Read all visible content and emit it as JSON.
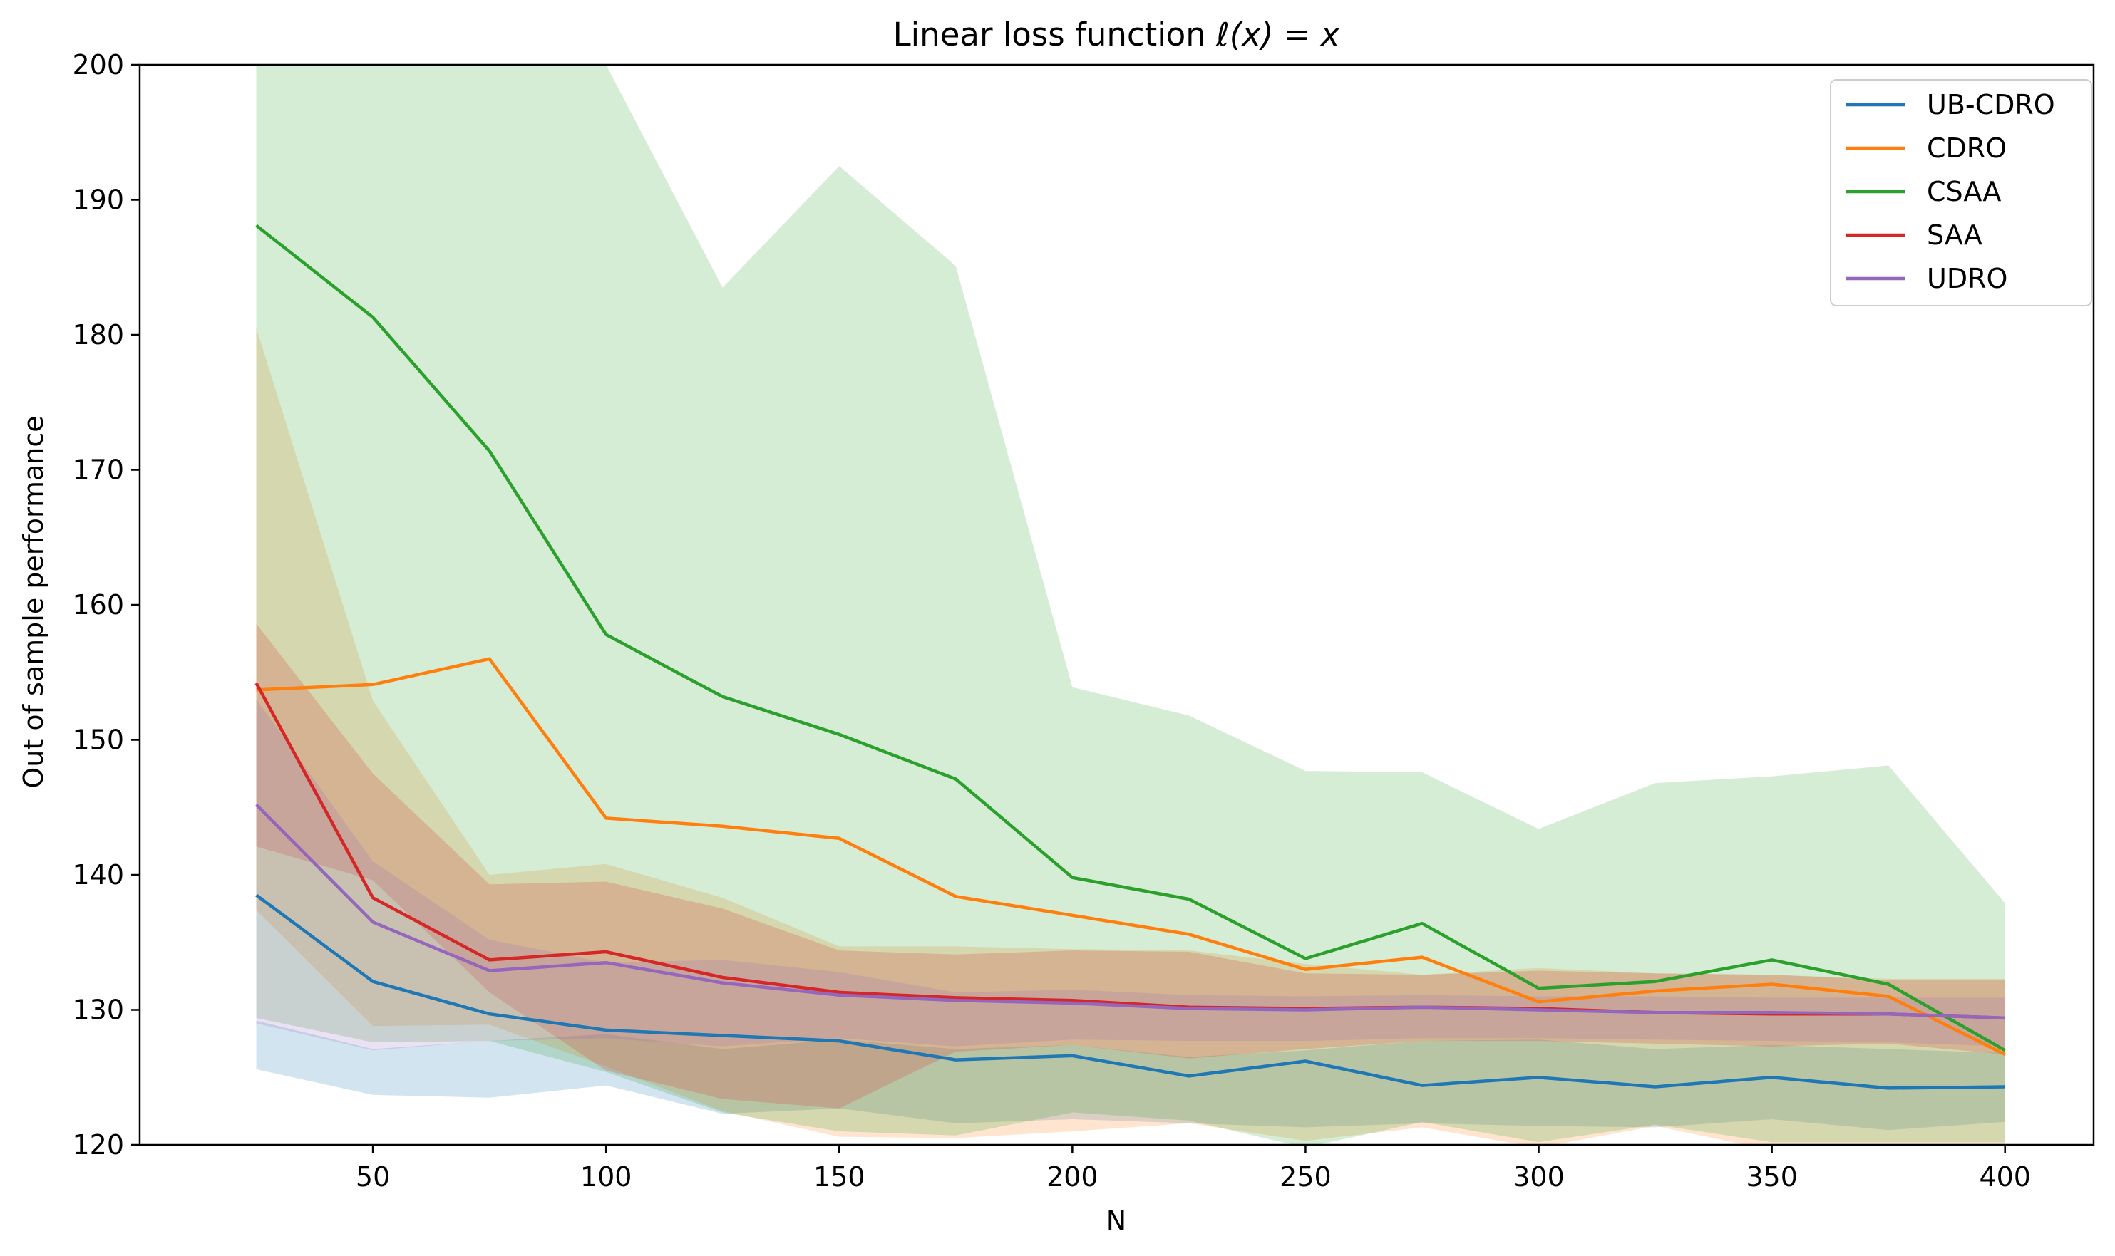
{
  "chart_data": {
    "type": "line",
    "title_prefix": "Linear loss function ",
    "title_math": "ℓ(x) = x",
    "xlabel": "N",
    "ylabel": "Out of sample performance",
    "xlim": [
      0,
      419
    ],
    "ylim": [
      120,
      200
    ],
    "xticks": [
      50,
      100,
      150,
      200,
      250,
      300,
      350,
      400
    ],
    "yticks": [
      120,
      130,
      140,
      150,
      160,
      170,
      180,
      190,
      200
    ],
    "grid": false,
    "legend_position": "top-right",
    "x": [
      25,
      50,
      75,
      100,
      125,
      150,
      175,
      200,
      225,
      250,
      275,
      300,
      325,
      350,
      375,
      400
    ],
    "series": [
      {
        "name": "UB-CDRO",
        "color": "#1f77b4",
        "values": [
          138.5,
          132.1,
          129.7,
          128.5,
          128.1,
          127.7,
          126.3,
          126.6,
          125.1,
          126.2,
          124.4,
          125.0,
          124.3,
          125.0,
          124.2,
          124.3
        ],
        "lower": [
          125.6,
          123.7,
          123.5,
          124.4,
          122.3,
          122.7,
          121.6,
          121.9,
          121.6,
          121.3,
          121.6,
          121.4,
          121.3,
          121.9,
          121.1,
          121.7
        ],
        "upper": [
          129.2,
          127.1,
          127.7,
          128.2,
          127.1,
          127.8,
          127.1,
          127.4,
          126.5,
          127.0,
          127.7,
          127.8,
          127.1,
          127.4,
          127.1,
          126.8
        ]
      },
      {
        "name": "CDRO",
        "color": "#ff7f0e",
        "values": [
          153.7,
          154.1,
          156.0,
          144.2,
          143.6,
          142.7,
          138.4,
          137.0,
          135.6,
          133.0,
          133.9,
          130.6,
          131.4,
          131.9,
          131.0,
          126.7
        ],
        "lower": [
          137.4,
          128.8,
          128.9,
          125.8,
          122.5,
          120.6,
          120.5,
          121.0,
          121.6,
          120.3,
          121.3,
          119.8,
          121.4,
          119.6,
          119.6,
          119.6
        ],
        "upper": [
          180.5,
          152.9,
          140.0,
          140.8,
          138.3,
          134.7,
          134.7,
          134.5,
          134.4,
          133.4,
          132.6,
          133.1,
          132.7,
          132.6,
          132.3,
          132.3
        ]
      },
      {
        "name": "CSAA",
        "color": "#2ca02c",
        "values": [
          188.1,
          181.3,
          171.4,
          157.8,
          153.2,
          150.4,
          147.1,
          139.8,
          138.2,
          133.8,
          136.4,
          131.6,
          132.1,
          133.7,
          131.9,
          127.0
        ],
        "lower": [
          129.4,
          127.6,
          127.7,
          125.4,
          122.4,
          121.0,
          120.7,
          122.4,
          121.8,
          119.8,
          121.7,
          120.2,
          121.5,
          120.2,
          120.2,
          120.2
        ],
        "upper": [
          200.0,
          200.0,
          200.0,
          200.0,
          183.5,
          192.5,
          185.1,
          153.9,
          151.8,
          147.7,
          147.6,
          143.4,
          146.8,
          147.3,
          148.1,
          137.9
        ]
      },
      {
        "name": "SAA",
        "color": "#d62728",
        "values": [
          154.2,
          138.3,
          133.7,
          134.3,
          132.4,
          131.3,
          130.9,
          130.7,
          130.2,
          130.1,
          130.2,
          130.1,
          129.8,
          129.7,
          129.7,
          129.4
        ],
        "lower": [
          142.1,
          139.6,
          131.3,
          125.5,
          123.4,
          122.7,
          126.9,
          127.4,
          126.4,
          127.1,
          127.7,
          127.7,
          127.5,
          127.3,
          127.5,
          126.7
        ],
        "upper": [
          158.6,
          147.5,
          139.3,
          139.5,
          137.5,
          134.4,
          134.1,
          134.4,
          134.3,
          132.7,
          132.6,
          132.9,
          132.7,
          132.6,
          132.2,
          132.2
        ]
      },
      {
        "name": "UDRO",
        "color": "#9467bd",
        "values": [
          145.2,
          136.5,
          132.9,
          133.5,
          132.0,
          131.1,
          130.7,
          130.5,
          130.1,
          130.0,
          130.2,
          130.0,
          129.8,
          129.8,
          129.7,
          129.4
        ],
        "lower": [
          129.0,
          127.0,
          127.7,
          127.9,
          127.3,
          127.9,
          127.3,
          127.8,
          127.7,
          127.7,
          127.9,
          127.9,
          127.8,
          127.7,
          127.6,
          127.3
        ],
        "upper": [
          153.0,
          141.0,
          135.2,
          133.5,
          133.7,
          132.8,
          131.3,
          131.5,
          131.1,
          131.0,
          131.1,
          131.0,
          131.0,
          130.9,
          130.9,
          130.9
        ]
      }
    ]
  }
}
